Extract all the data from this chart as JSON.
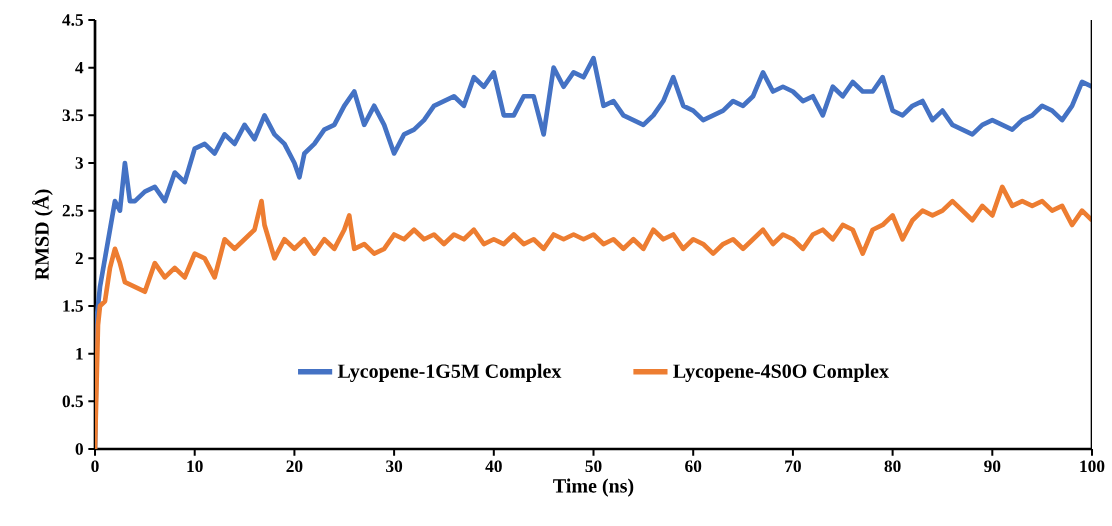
{
  "chart_data": {
    "type": "line",
    "xlabel": "Time (ns)",
    "ylabel": "RMSD (Å)",
    "xlim": [
      0,
      100
    ],
    "ylim": [
      0,
      4.5
    ],
    "xticks": [
      0,
      10,
      20,
      30,
      40,
      50,
      60,
      70,
      80,
      90,
      100
    ],
    "yticks": [
      0,
      0.5,
      1,
      1.5,
      2,
      2.5,
      3,
      3.5,
      4,
      4.5
    ],
    "grid": false,
    "legend": "bottom",
    "marker": "none",
    "line_style": "solid",
    "series": [
      {
        "name": "Lycopene-1G5M Complex",
        "color": "#4472c4",
        "x": [
          0,
          0.2,
          0.5,
          1,
          1.5,
          2,
          2.5,
          3,
          3.5,
          4,
          5,
          6,
          7,
          8,
          9,
          10,
          11,
          12,
          13,
          14,
          15,
          16,
          17,
          18,
          19,
          20,
          20.5,
          21,
          22,
          23,
          24,
          25,
          26,
          27,
          28,
          29,
          30,
          31,
          32,
          33,
          34,
          35,
          36,
          37,
          38,
          39,
          40,
          41,
          42,
          43,
          44,
          45,
          46,
          47,
          48,
          49,
          50,
          51,
          52,
          53,
          54,
          55,
          56,
          57,
          58,
          59,
          60,
          61,
          62,
          63,
          64,
          65,
          66,
          67,
          68,
          69,
          70,
          71,
          72,
          73,
          74,
          75,
          76,
          77,
          78,
          79,
          80,
          81,
          82,
          83,
          84,
          85,
          86,
          87,
          88,
          89,
          90,
          91,
          92,
          93,
          94,
          95,
          96,
          97,
          98,
          99,
          100
        ],
        "values": [
          0,
          1.4,
          1.7,
          2.0,
          2.3,
          2.6,
          2.5,
          3.0,
          2.6,
          2.6,
          2.7,
          2.75,
          2.6,
          2.9,
          2.8,
          3.15,
          3.2,
          3.1,
          3.3,
          3.2,
          3.4,
          3.25,
          3.5,
          3.3,
          3.2,
          3.0,
          2.85,
          3.1,
          3.2,
          3.35,
          3.4,
          3.6,
          3.75,
          3.4,
          3.6,
          3.4,
          3.1,
          3.3,
          3.35,
          3.45,
          3.6,
          3.65,
          3.7,
          3.6,
          3.9,
          3.8,
          3.95,
          3.5,
          3.5,
          3.7,
          3.7,
          3.3,
          4.0,
          3.8,
          3.95,
          3.9,
          4.1,
          3.6,
          3.65,
          3.5,
          3.45,
          3.4,
          3.5,
          3.65,
          3.9,
          3.6,
          3.55,
          3.45,
          3.5,
          3.55,
          3.65,
          3.6,
          3.7,
          3.95,
          3.75,
          3.8,
          3.75,
          3.65,
          3.7,
          3.5,
          3.8,
          3.7,
          3.85,
          3.75,
          3.75,
          3.9,
          3.55,
          3.5,
          3.6,
          3.65,
          3.45,
          3.55,
          3.4,
          3.35,
          3.3,
          3.4,
          3.45,
          3.4,
          3.35,
          3.45,
          3.5,
          3.6,
          3.55,
          3.45,
          3.6,
          3.85,
          3.8
        ]
      },
      {
        "name": "Lycopene-4S0O Complex",
        "color": "#ed7d31",
        "x": [
          0,
          0.3,
          0.5,
          1,
          1.5,
          2,
          2.5,
          3,
          4,
          5,
          6,
          7,
          8,
          9,
          10,
          11,
          12,
          13,
          14,
          15,
          16,
          16.7,
          17,
          18,
          19,
          20,
          21,
          22,
          23,
          24,
          25,
          25.5,
          26,
          27,
          28,
          29,
          30,
          31,
          32,
          33,
          34,
          35,
          36,
          37,
          38,
          39,
          40,
          41,
          42,
          43,
          44,
          45,
          46,
          47,
          48,
          49,
          50,
          51,
          52,
          53,
          54,
          55,
          56,
          57,
          58,
          59,
          60,
          61,
          62,
          63,
          64,
          65,
          66,
          67,
          68,
          69,
          70,
          71,
          72,
          73,
          74,
          75,
          76,
          77,
          78,
          79,
          80,
          81,
          82,
          83,
          84,
          85,
          86,
          87,
          88,
          89,
          90,
          91,
          92,
          93,
          94,
          95,
          96,
          97,
          98,
          99,
          100
        ],
        "values": [
          0,
          1.3,
          1.5,
          1.55,
          1.9,
          2.1,
          1.95,
          1.75,
          1.7,
          1.65,
          1.95,
          1.8,
          1.9,
          1.8,
          2.05,
          2.0,
          1.8,
          2.2,
          2.1,
          2.2,
          2.3,
          2.6,
          2.35,
          2.0,
          2.2,
          2.1,
          2.2,
          2.05,
          2.2,
          2.1,
          2.3,
          2.45,
          2.1,
          2.15,
          2.05,
          2.1,
          2.25,
          2.2,
          2.3,
          2.2,
          2.25,
          2.15,
          2.25,
          2.2,
          2.3,
          2.15,
          2.2,
          2.15,
          2.25,
          2.15,
          2.2,
          2.1,
          2.25,
          2.2,
          2.25,
          2.2,
          2.25,
          2.15,
          2.2,
          2.1,
          2.2,
          2.1,
          2.3,
          2.2,
          2.25,
          2.1,
          2.2,
          2.15,
          2.05,
          2.15,
          2.2,
          2.1,
          2.2,
          2.3,
          2.15,
          2.25,
          2.2,
          2.1,
          2.25,
          2.3,
          2.2,
          2.35,
          2.3,
          2.05,
          2.3,
          2.35,
          2.45,
          2.2,
          2.4,
          2.5,
          2.45,
          2.5,
          2.6,
          2.5,
          2.4,
          2.55,
          2.45,
          2.75,
          2.55,
          2.6,
          2.55,
          2.6,
          2.5,
          2.55,
          2.35,
          2.5,
          2.4
        ]
      }
    ]
  }
}
